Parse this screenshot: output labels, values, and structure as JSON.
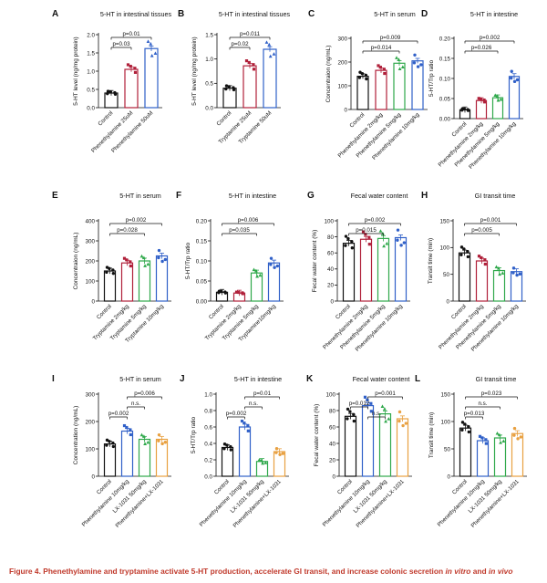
{
  "colors": {
    "black": "#111111",
    "red": "#b0203a",
    "blue": "#3060c8",
    "green": "#2ea84a",
    "orange": "#e8a040",
    "caption": "#c0392b"
  },
  "chart_data": [
    {
      "type": "bar",
      "letter": "A",
      "title": "5-HT in intestinal tissues",
      "ylabel": "5-HT level (ng/mg protein)",
      "ylim": [
        0,
        2.0
      ],
      "ticks": [
        "0.0",
        "0.5",
        "1.0",
        "1.5",
        "2.0"
      ],
      "categories": [
        "Control",
        "Phenethylamine 25uM",
        "Phenethylamine 50uM"
      ],
      "values": [
        0.4,
        1.05,
        1.62
      ],
      "colors": [
        "black",
        "red",
        "blue"
      ],
      "sig": [
        {
          "a": 0,
          "b": 1,
          "label": "p=0.03"
        },
        {
          "a": 0,
          "b": 2,
          "label": "p=0.01"
        }
      ]
    },
    {
      "type": "bar",
      "letter": "B",
      "title": "5-HT in intestinal tissues",
      "ylabel": "5-HT level (ng/mg protein)",
      "ylim": [
        0,
        1.5
      ],
      "ticks": [
        "0.0",
        "0.5",
        "1.0",
        "1.5"
      ],
      "categories": [
        "Control",
        "Tryptamine 25uM",
        "Tryptamine 50uM"
      ],
      "values": [
        0.4,
        0.86,
        1.2
      ],
      "colors": [
        "black",
        "red",
        "blue"
      ],
      "sig": [
        {
          "a": 0,
          "b": 1,
          "label": "p=0.02"
        },
        {
          "a": 0,
          "b": 2,
          "label": "p=0.011"
        }
      ]
    },
    {
      "type": "bar",
      "letter": "C",
      "title": "5-HT in serum",
      "ylabel": "Concentraion (ng/mL)",
      "ylim": [
        0,
        300
      ],
      "ticks": [
        "0",
        "100",
        "200",
        "300"
      ],
      "categories": [
        "Control",
        "Phenethylamine 2mg/kg",
        "Phenethylamine 5mg/kg",
        "Phenethylamine 10mg/kg"
      ],
      "values": [
        140,
        165,
        195,
        205
      ],
      "colors": [
        "black",
        "red",
        "green",
        "blue"
      ],
      "sig": [
        {
          "a": 0,
          "b": 2,
          "label": "p=0.014"
        },
        {
          "a": 0,
          "b": 3,
          "label": "p=0.009"
        }
      ]
    },
    {
      "type": "bar",
      "letter": "D",
      "title": "5-HT in intestine",
      "ylabel": "5-HT/Trp ratio",
      "ylim": [
        0,
        0.2
      ],
      "ticks": [
        "0.00",
        "0.05",
        "0.10",
        "0.15",
        "0.20"
      ],
      "categories": [
        "Control",
        "Phenethylamine 2mg/kg",
        "Phenethylamine 5mg/kg",
        "Phenethylamine 10mg/kg"
      ],
      "values": [
        0.022,
        0.045,
        0.052,
        0.105
      ],
      "colors": [
        "black",
        "red",
        "green",
        "blue"
      ],
      "sig": [
        {
          "a": 0,
          "b": 2,
          "label": "p=0.026"
        },
        {
          "a": 0,
          "b": 3,
          "label": "p=0.002"
        }
      ]
    },
    {
      "type": "bar",
      "letter": "E",
      "title": "5-HT in serum",
      "ylabel": "Concentraion (ng/mL)",
      "ylim": [
        0,
        400
      ],
      "ticks": [
        "0",
        "100",
        "200",
        "300",
        "400"
      ],
      "categories": [
        "Control",
        "Tryptamine 2mg/kg",
        "Tryptamine 5mg/kg",
        "Tryptamine 10mg/kg"
      ],
      "values": [
        150,
        190,
        200,
        225
      ],
      "colors": [
        "black",
        "red",
        "green",
        "blue"
      ],
      "sig": [
        {
          "a": 0,
          "b": 2,
          "label": "p=0.028"
        },
        {
          "a": 0,
          "b": 3,
          "label": "p=0.002"
        }
      ]
    },
    {
      "type": "bar",
      "letter": "F",
      "title": "5-HT in intestine",
      "ylabel": "5-HT/Trp ratio",
      "ylim": [
        0,
        0.2
      ],
      "ticks": [
        "0.00",
        "0.05",
        "0.10",
        "0.15",
        "0.20"
      ],
      "categories": [
        "Control",
        "Tryptamine 2mg/kg",
        "Tryptamine 5mg/kg",
        "Tryptamine10mg/kg"
      ],
      "values": [
        0.022,
        0.02,
        0.07,
        0.095
      ],
      "colors": [
        "black",
        "red",
        "green",
        "blue"
      ],
      "sig": [
        {
          "a": 0,
          "b": 2,
          "label": "p=0.035"
        },
        {
          "a": 0,
          "b": 3,
          "label": "p=0.006"
        }
      ]
    },
    {
      "type": "bar",
      "letter": "G",
      "title": "Fecal water content",
      "ylabel": "Fecal water content (%)",
      "ylim": [
        0,
        100
      ],
      "ticks": [
        "0",
        "20",
        "40",
        "60",
        "80",
        "100"
      ],
      "categories": [
        "Control",
        "Phenethylamine 2mg/kg",
        "Phenethylamine 5mg/kg",
        "Phenethylamine 10mg/kg"
      ],
      "values": [
        72,
        77,
        78,
        79
      ],
      "colors": [
        "black",
        "red",
        "green",
        "blue"
      ],
      "sig": [
        {
          "a": 0,
          "b": 2,
          "label": "p=0.015"
        },
        {
          "a": 0,
          "b": 3,
          "label": "p=0.002"
        }
      ]
    },
    {
      "type": "bar",
      "letter": "H",
      "title": "GI transit time",
      "ylabel": "Transit time (min)",
      "ylim": [
        0,
        150
      ],
      "ticks": [
        "0",
        "50",
        "100",
        "150"
      ],
      "categories": [
        "Control",
        "Phenethylamine 2mg/kg",
        "Phenethylamine 5mg/kg",
        "Phenethylamine 10mg/kg"
      ],
      "values": [
        90,
        75,
        57,
        55
      ],
      "colors": [
        "black",
        "red",
        "green",
        "blue"
      ],
      "sig": [
        {
          "a": 0,
          "b": 2,
          "label": "p=0.005"
        },
        {
          "a": 0,
          "b": 3,
          "label": "p=0.001"
        }
      ]
    },
    {
      "type": "bar",
      "letter": "I",
      "title": "5-HT in serum",
      "ylabel": "Concentration (ng/mL)",
      "ylim": [
        0,
        300
      ],
      "ticks": [
        "0",
        "100",
        "200",
        "300"
      ],
      "categories": [
        "Control",
        "Phenethylamine 10mg/kg",
        "LX-1031 50mg/kg",
        "Phenethylamine+LX-1031"
      ],
      "values": [
        118,
        165,
        135,
        135
      ],
      "colors": [
        "black",
        "blue",
        "green",
        "orange"
      ],
      "sig": [
        {
          "a": 0,
          "b": 1,
          "label": "p=0.002"
        },
        {
          "a": 1,
          "b": 2,
          "label": "n.s."
        },
        {
          "a": 1,
          "b": 3,
          "label": "p=0.006"
        }
      ]
    },
    {
      "type": "bar",
      "letter": "J",
      "title": "5-HT in intestine",
      "ylabel": "5-HT/Trp ratio",
      "ylim": [
        0,
        1.0
      ],
      "ticks": [
        "0.0",
        "0.2",
        "0.4",
        "0.6",
        "0.8",
        "1.0"
      ],
      "categories": [
        "Control",
        "Phenethylamine 10mg/kg",
        "LX-1031 50mg/kg",
        "Phenethylamine+LX-1031"
      ],
      "values": [
        0.35,
        0.6,
        0.18,
        0.3
      ],
      "colors": [
        "black",
        "blue",
        "green",
        "orange"
      ],
      "sig": [
        {
          "a": 0,
          "b": 1,
          "label": "p=0.002"
        },
        {
          "a": 1,
          "b": 2,
          "label": "n.s."
        },
        {
          "a": 1,
          "b": 3,
          "label": "p=0.01"
        }
      ]
    },
    {
      "type": "bar",
      "letter": "K",
      "title": "Fecal water content",
      "ylabel": "Fecal water content (%)",
      "ylim": [
        0,
        100
      ],
      "ticks": [
        "0",
        "20",
        "40",
        "60",
        "80",
        "100"
      ],
      "categories": [
        "Control",
        "Phenethylamine 10mg/kg",
        "LX-1031 50mg/kg",
        "Phenethylamine+LX-1031"
      ],
      "values": [
        73,
        86,
        76,
        70
      ],
      "colors": [
        "black",
        "blue",
        "green",
        "orange"
      ],
      "sig": [
        {
          "a": 1,
          "b": 2,
          "label": "n.s."
        },
        {
          "a": 0,
          "b": 1,
          "label": "p=0.012"
        },
        {
          "a": 1,
          "b": 3,
          "label": "p=0.001"
        }
      ]
    },
    {
      "type": "bar",
      "letter": "L",
      "title": "GI transit time",
      "ylabel": "Transit time (min)",
      "ylim": [
        0,
        150
      ],
      "ticks": [
        "0",
        "50",
        "100",
        "150"
      ],
      "categories": [
        "Control",
        "Phenethylamine 10mg/kg",
        "LX-1031 50mg/kg",
        "Phenethylamine+LX-1031"
      ],
      "values": [
        88,
        65,
        70,
        78
      ],
      "colors": [
        "black",
        "blue",
        "green",
        "orange"
      ],
      "sig": [
        {
          "a": 0,
          "b": 1,
          "label": "p=0.013"
        },
        {
          "a": 0,
          "b": 2,
          "label": "n.s."
        },
        {
          "a": 0,
          "b": 3,
          "label": "p=0.023"
        }
      ]
    }
  ],
  "caption": {
    "prefix": "Figure 4.  Phenethylamine and tryptamine activate 5-HT production, accelerate GI transit, and increase colonic secretion ",
    "italic1": "in vitro",
    "mid": " and ",
    "italic2": "in vivo"
  }
}
